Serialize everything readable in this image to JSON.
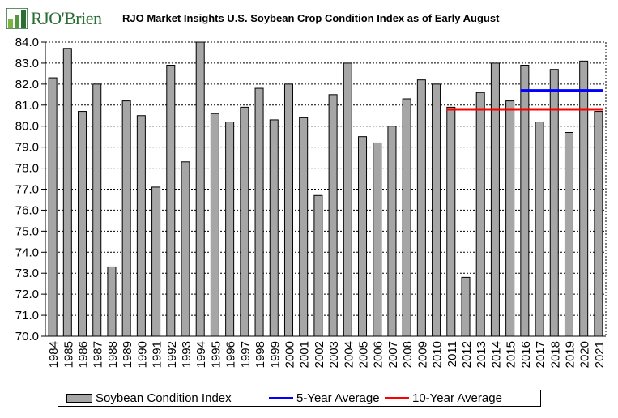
{
  "logo": {
    "text": "RJO'Brien"
  },
  "chart_data": {
    "type": "bar",
    "title": "RJO Market Insights U.S. Soybean Crop Condition Index as of Early August",
    "xlabel": "",
    "ylabel": "",
    "ylim": [
      70.0,
      84.0
    ],
    "ytick_step": 1.0,
    "grid": true,
    "legend_placement": "bottom",
    "categories": [
      "1984",
      "1985",
      "1986",
      "1987",
      "1988",
      "1989",
      "1990",
      "1991",
      "1992",
      "1993",
      "1994",
      "1995",
      "1996",
      "1997",
      "1998",
      "1999",
      "2000",
      "2001",
      "2002",
      "2003",
      "2004",
      "2005",
      "2006",
      "2007",
      "2008",
      "2009",
      "2010",
      "2011",
      "2012",
      "2013",
      "2014",
      "2015",
      "2016",
      "2017",
      "2018",
      "2019",
      "2020",
      "2021"
    ],
    "series": [
      {
        "name": "Soybean Condition Index",
        "type": "bar",
        "color": "#a6a6a6",
        "values": [
          82.3,
          83.7,
          80.7,
          82.0,
          73.3,
          81.2,
          80.5,
          77.1,
          82.9,
          78.3,
          84.0,
          80.6,
          80.2,
          80.9,
          81.8,
          80.3,
          82.0,
          80.4,
          76.7,
          81.5,
          83.0,
          79.5,
          79.2,
          80.0,
          81.3,
          82.2,
          82.0,
          80.9,
          72.8,
          81.6,
          83.0,
          81.2,
          82.9,
          80.2,
          82.7,
          79.7,
          83.1,
          80.7
        ]
      },
      {
        "name": "5-Year Average",
        "type": "line",
        "color": "#0000ff",
        "value": 81.7,
        "start_category": "2016",
        "end_category": "2021"
      },
      {
        "name": "10-Year Average",
        "type": "line",
        "color": "#ff0000",
        "value": 80.8,
        "start_category": "2011",
        "end_category": "2021"
      }
    ]
  }
}
